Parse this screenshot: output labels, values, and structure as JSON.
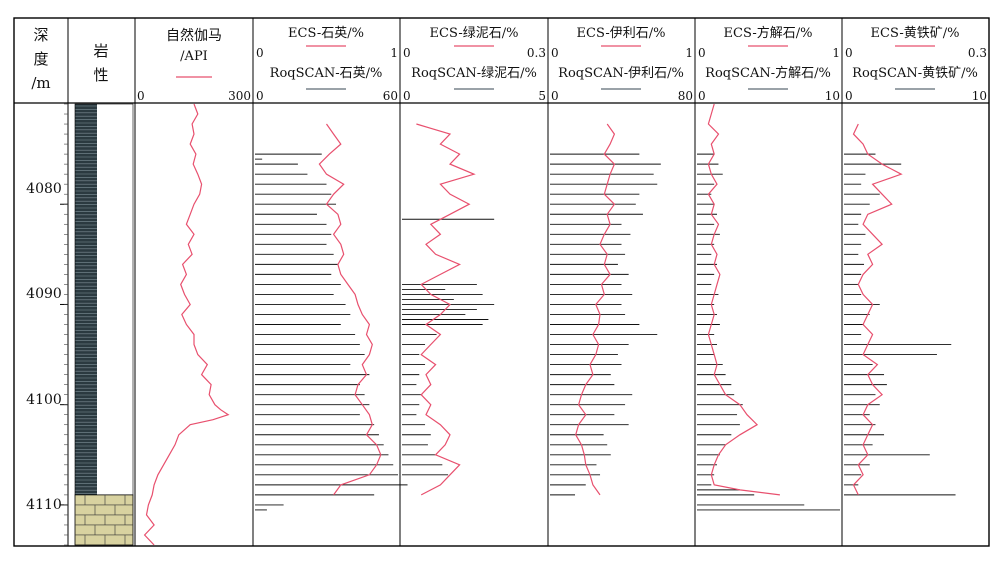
{
  "depth_header": {
    "line1": "深",
    "line2": "度",
    "line3": "/m"
  },
  "lith_header": {
    "line1": "岩",
    "line2": "性"
  },
  "colors": {
    "ecs": "#e8506e",
    "roq": "#111111",
    "legend_roq": "#5d6b73",
    "shale": "#2b3a40",
    "limestone": "#d8d2a0"
  },
  "chart_data": {
    "type": "line",
    "y_axis": {
      "label": "深度/m",
      "min": 4070,
      "max": 4114,
      "ticks": [
        "4080",
        "4090",
        "4100",
        "4110"
      ],
      "tick_values": [
        4080,
        4090,
        4100,
        4110
      ]
    },
    "lithology": [
      {
        "name": "泥岩",
        "top": 4070,
        "bottom": 4109,
        "pattern": "shale"
      },
      {
        "name": "灰岩",
        "top": 4109,
        "bottom": 4114,
        "pattern": "limestone"
      }
    ],
    "gr": {
      "title1": "自然伽马",
      "title2": "/API",
      "scale_min": "0",
      "scale_max": "300",
      "min": 0,
      "max": 300,
      "depth": [
        4070,
        4071,
        4072,
        4073,
        4074,
        4075,
        4076,
        4077,
        4078,
        4079,
        4080,
        4081,
        4082,
        4083,
        4084,
        4085,
        4086,
        4087,
        4088,
        4089,
        4090,
        4091,
        4092,
        4093,
        4094,
        4095,
        4096,
        4097,
        4098,
        4099,
        4100,
        4100.5,
        4101,
        4101.5,
        4102,
        4103,
        4104,
        4105,
        4106,
        4107,
        4108,
        4109,
        4110,
        4111,
        4112,
        4113,
        4114
      ],
      "values": [
        150,
        160,
        145,
        150,
        140,
        155,
        148,
        160,
        170,
        165,
        150,
        140,
        130,
        150,
        135,
        145,
        120,
        130,
        115,
        125,
        140,
        118,
        130,
        150,
        150,
        160,
        185,
        170,
        195,
        190,
        205,
        220,
        240,
        200,
        140,
        110,
        100,
        85,
        70,
        55,
        45,
        40,
        30,
        25,
        45,
        20,
        45
      ]
    },
    "tracks": [
      {
        "ecs_label": "ECS-石英/%",
        "ecs_min": "0",
        "ecs_max": "1",
        "ecs_range": [
          0,
          1
        ],
        "roq_label": "RoqSCAN-石英/%",
        "roq_min": "0",
        "roq_max": "60",
        "roq_range": [
          0,
          60
        ],
        "ecs_depth": [
          4072,
          4073,
          4074,
          4075,
          4076,
          4077,
          4078,
          4079,
          4080,
          4081,
          4082,
          4083,
          4084,
          4085,
          4086,
          4087,
          4088,
          4089,
          4090,
          4091,
          4092,
          4093,
          4094,
          4095,
          4096,
          4097,
          4098,
          4099,
          4100,
          4101,
          4102,
          4103,
          4104,
          4105,
          4106,
          4107,
          4108,
          4109
        ],
        "ecs": [
          0.5,
          0.55,
          0.6,
          0.52,
          0.45,
          0.5,
          0.62,
          0.55,
          0.5,
          0.58,
          0.6,
          0.55,
          0.6,
          0.62,
          0.58,
          0.6,
          0.65,
          0.7,
          0.72,
          0.75,
          0.8,
          0.78,
          0.82,
          0.8,
          0.75,
          0.78,
          0.72,
          0.7,
          0.75,
          0.8,
          0.82,
          0.78,
          0.85,
          0.88,
          0.85,
          0.8,
          0.6,
          0.55
        ],
        "roq_depth": [
          4075,
          4075.5,
          4076,
          4077,
          4078,
          4079,
          4080,
          4081,
          4082,
          4083,
          4084,
          4085,
          4086,
          4087,
          4088,
          4089,
          4090,
          4091,
          4092,
          4093,
          4094,
          4095,
          4096,
          4097,
          4098,
          4099,
          4100,
          4101,
          4102,
          4103,
          4104,
          4105,
          4106,
          4107,
          4108,
          4109,
          4110,
          4110.5
        ],
        "roq": [
          28,
          3,
          18,
          22,
          30,
          32,
          34,
          26,
          30,
          32,
          30,
          33,
          35,
          32,
          36,
          33,
          38,
          40,
          36,
          42,
          44,
          46,
          40,
          48,
          44,
          46,
          48,
          44,
          50,
          52,
          54,
          56,
          58,
          60,
          64,
          50,
          12,
          5
        ]
      },
      {
        "ecs_label": "ECS-绿泥石/%",
        "ecs_min": "0",
        "ecs_max": "0.3",
        "ecs_range": [
          0,
          0.3
        ],
        "roq_label": "RoqSCAN-绿泥石/%",
        "roq_min": "0",
        "roq_max": "5",
        "roq_range": [
          0,
          5
        ],
        "ecs_depth": [
          4072,
          4073,
          4074,
          4075,
          4076,
          4077,
          4078,
          4079,
          4080,
          4081,
          4082,
          4083,
          4084,
          4085,
          4086,
          4087,
          4088,
          4089,
          4090,
          4091,
          4092,
          4093,
          4094,
          4095,
          4096,
          4097,
          4098,
          4099,
          4100,
          4101,
          4102,
          4103,
          4104,
          4105,
          4106,
          4107,
          4108,
          4109
        ],
        "ecs": [
          0.03,
          0.1,
          0.08,
          0.12,
          0.1,
          0.15,
          0.08,
          0.1,
          0.14,
          0.1,
          0.06,
          0.08,
          0.05,
          0.07,
          0.12,
          0.08,
          0.04,
          0.06,
          0.1,
          0.08,
          0.05,
          0.08,
          0.06,
          0.04,
          0.07,
          0.05,
          0.06,
          0.04,
          0.06,
          0.05,
          0.08,
          0.1,
          0.09,
          0.07,
          0.12,
          0.1,
          0.08,
          0.04
        ],
        "roq_depth": [
          4081.5,
          4088,
          4088.5,
          4089,
          4089.5,
          4090,
          4090.5,
          4091,
          4091.5,
          4092,
          4093,
          4094,
          4095,
          4096,
          4097,
          4098,
          4099,
          4100,
          4101,
          4102,
          4103,
          4104,
          4105,
          4106,
          4107
        ],
        "roq": [
          3.2,
          2.6,
          1.5,
          2.8,
          1.8,
          3.2,
          2.6,
          2.2,
          3.0,
          2.8,
          1.2,
          0.8,
          0.6,
          0.8,
          0.6,
          0.5,
          0.7,
          0.6,
          0.5,
          0.8,
          1.0,
          0.9,
          1.2,
          1.4,
          1.6
        ]
      },
      {
        "ecs_label": "ECS-伊利石/%",
        "ecs_min": "0",
        "ecs_max": "1",
        "ecs_range": [
          0,
          1
        ],
        "roq_label": "RoqSCAN-伊利石/%",
        "roq_min": "0",
        "roq_max": "80",
        "roq_range": [
          0,
          80
        ],
        "ecs_depth": [
          4072,
          4073,
          4074,
          4075,
          4076,
          4077,
          4078,
          4079,
          4080,
          4081,
          4082,
          4083,
          4084,
          4085,
          4086,
          4087,
          4088,
          4089,
          4090,
          4091,
          4092,
          4093,
          4094,
          4095,
          4096,
          4097,
          4098,
          4099,
          4100,
          4101,
          4102,
          4103,
          4104,
          4105,
          4106,
          4107,
          4108,
          4109
        ],
        "ecs": [
          0.4,
          0.45,
          0.42,
          0.38,
          0.45,
          0.42,
          0.4,
          0.38,
          0.45,
          0.4,
          0.42,
          0.38,
          0.35,
          0.4,
          0.38,
          0.42,
          0.36,
          0.38,
          0.32,
          0.35,
          0.34,
          0.3,
          0.34,
          0.32,
          0.28,
          0.3,
          0.25,
          0.22,
          0.2,
          0.25,
          0.2,
          0.18,
          0.22,
          0.24,
          0.25,
          0.28,
          0.3,
          0.35
        ],
        "roq_depth": [
          4075,
          4076,
          4077,
          4078,
          4079,
          4080,
          4081,
          4082,
          4083,
          4084,
          4085,
          4086,
          4087,
          4088,
          4089,
          4090,
          4091,
          4092,
          4093,
          4094,
          4095,
          4096,
          4097,
          4098,
          4099,
          4100,
          4101,
          4102,
          4103,
          4104,
          4105,
          4106,
          4107,
          4108,
          4109
        ],
        "roq": [
          50,
          62,
          58,
          60,
          50,
          48,
          52,
          40,
          45,
          40,
          42,
          38,
          44,
          40,
          46,
          40,
          42,
          50,
          60,
          44,
          38,
          40,
          34,
          36,
          46,
          42,
          36,
          44,
          30,
          32,
          34,
          26,
          28,
          20,
          14
        ]
      },
      {
        "ecs_label": "ECS-方解石/%",
        "ecs_min": "0",
        "ecs_max": "1",
        "ecs_range": [
          0,
          1
        ],
        "roq_label": "RoqSCAN-方解石/%",
        "roq_min": "0",
        "roq_max": "10",
        "roq_range": [
          0,
          10
        ],
        "ecs_depth": [
          4070,
          4071,
          4072,
          4073,
          4074,
          4075,
          4076,
          4077,
          4078,
          4079,
          4080,
          4081,
          4082,
          4083,
          4084,
          4085,
          4086,
          4087,
          4088,
          4089,
          4090,
          4091,
          4092,
          4093,
          4094,
          4095,
          4096,
          4097,
          4098,
          4099,
          4100,
          4101,
          4102,
          4103,
          4104,
          4105,
          4106,
          4107,
          4108,
          4108.5,
          4109
        ],
        "ecs": [
          0.12,
          0.1,
          0.08,
          0.15,
          0.1,
          0.12,
          0.08,
          0.1,
          0.14,
          0.08,
          0.12,
          0.1,
          0.15,
          0.12,
          0.1,
          0.14,
          0.12,
          0.16,
          0.14,
          0.12,
          0.1,
          0.12,
          0.1,
          0.08,
          0.1,
          0.12,
          0.14,
          0.12,
          0.16,
          0.2,
          0.3,
          0.35,
          0.42,
          0.3,
          0.2,
          0.15,
          0.12,
          0.1,
          0.12,
          0.3,
          0.58
        ],
        "roq_depth": [
          4075,
          4076,
          4077,
          4078,
          4079,
          4080,
          4081,
          4082,
          4083,
          4084,
          4085,
          4086,
          4087,
          4088,
          4089,
          4090,
          4091,
          4092,
          4093,
          4094,
          4095,
          4096,
          4097,
          4098,
          4099,
          4100,
          4101,
          4102,
          4103,
          4104,
          4105,
          4106,
          4107,
          4108,
          4108.5,
          4109,
          4110,
          4110.5
        ],
        "roq": [
          1.2,
          1.5,
          1.8,
          1.2,
          1.0,
          1.2,
          1.4,
          1.2,
          1.6,
          1.2,
          1.0,
          1.4,
          1.2,
          1.0,
          1.5,
          1.2,
          1.4,
          1.6,
          1.2,
          1.4,
          1.2,
          1.8,
          2.0,
          2.4,
          2.6,
          3.2,
          2.8,
          3.0,
          2.4,
          2.0,
          1.6,
          1.4,
          1.2,
          1.0,
          3.0,
          4.0,
          7.5,
          10
        ]
      },
      {
        "ecs_label": "ECS-黄铁矿/%",
        "ecs_min": "0",
        "ecs_max": "0.3",
        "ecs_range": [
          0,
          0.3
        ],
        "roq_label": "RoqSCAN-黄铁矿/%",
        "roq_min": "0",
        "roq_max": "10",
        "roq_range": [
          0,
          10
        ],
        "ecs_depth": [
          4072,
          4073,
          4074,
          4075,
          4076,
          4077,
          4078,
          4079,
          4080,
          4081,
          4082,
          4083,
          4084,
          4085,
          4086,
          4087,
          4088,
          4089,
          4090,
          4091,
          4092,
          4093,
          4094,
          4095,
          4096,
          4097,
          4098,
          4099,
          4100,
          4101,
          4102,
          4103,
          4104,
          4105,
          4106,
          4107,
          4108,
          4109
        ],
        "ecs": [
          0.03,
          0.02,
          0.04,
          0.05,
          0.08,
          0.12,
          0.06,
          0.08,
          0.1,
          0.05,
          0.04,
          0.06,
          0.08,
          0.05,
          0.06,
          0.04,
          0.03,
          0.04,
          0.06,
          0.05,
          0.04,
          0.06,
          0.05,
          0.04,
          0.07,
          0.05,
          0.06,
          0.08,
          0.05,
          0.04,
          0.06,
          0.05,
          0.04,
          0.05,
          0.03,
          0.04,
          0.02,
          0.03
        ],
        "roq_depth": [
          4075,
          4076,
          4077,
          4078,
          4079,
          4080,
          4081,
          4082,
          4083,
          4084,
          4085,
          4086,
          4087,
          4088,
          4089,
          4090,
          4091,
          4092,
          4093,
          4094,
          4095,
          4096,
          4097,
          4098,
          4099,
          4100,
          4101,
          4102,
          4103,
          4104,
          4105,
          4106,
          4107,
          4108,
          4109
        ],
        "roq": [
          2.2,
          4.0,
          1.5,
          1.2,
          2.5,
          1.8,
          1.2,
          1.0,
          1.5,
          1.2,
          1.0,
          1.4,
          1.2,
          1.0,
          1.2,
          2.5,
          1.8,
          1.4,
          1.2,
          7.5,
          6.5,
          2.0,
          2.8,
          3.0,
          2.2,
          2.5,
          1.8,
          2.2,
          2.8,
          2.0,
          6.0,
          1.8,
          1.2,
          1.0,
          7.8
        ]
      }
    ]
  }
}
